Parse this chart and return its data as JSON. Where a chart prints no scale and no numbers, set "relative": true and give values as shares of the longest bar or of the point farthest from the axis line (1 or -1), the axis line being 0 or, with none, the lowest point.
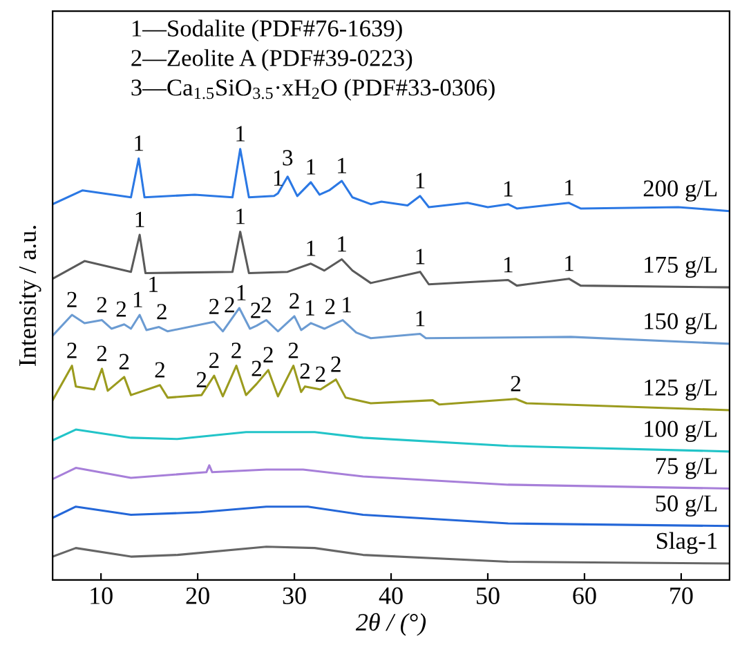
{
  "chart_data": {
    "type": "line",
    "relative": true,
    "xlabel": "2θ / (°)",
    "ylabel": "Intensity / a.u.",
    "xlim": [
      5,
      75
    ],
    "xticks": [
      10,
      20,
      30,
      40,
      50,
      60,
      70
    ],
    "tick_labels": "x",
    "grid": false,
    "legend": false,
    "marker": "none",
    "line_style": "solid",
    "series": [
      {
        "name": "200 g/L",
        "color": "#2b78e4",
        "x": [
          5.0,
          8.1,
          13.1,
          13.9,
          14.5,
          19.7,
          23.6,
          24.4,
          25.3,
          27.9,
          28.3,
          29.3,
          30.3,
          31.7,
          32.6,
          33.6,
          34.9,
          36.0,
          37.9,
          39.0,
          41.7,
          43.0,
          43.9,
          47.9,
          50.0,
          52.1,
          53.0,
          58.4,
          59.6,
          69.7,
          75.0
        ],
        "values": [
          0.872,
          0.904,
          0.888,
          0.978,
          0.888,
          0.894,
          0.888,
          1.0,
          0.888,
          0.891,
          0.897,
          0.936,
          0.891,
          0.923,
          0.894,
          0.904,
          0.926,
          0.888,
          0.872,
          0.878,
          0.869,
          0.891,
          0.865,
          0.875,
          0.865,
          0.872,
          0.862,
          0.875,
          0.862,
          0.865,
          0.856
        ]
      },
      {
        "name": "175 g/L",
        "color": "#5a5a5a",
        "x": [
          5.0,
          8.3,
          13.1,
          14.0,
          14.6,
          23.6,
          24.4,
          25.3,
          29.3,
          31.7,
          33.1,
          34.9,
          36.0,
          37.9,
          43.0,
          43.9,
          52.1,
          53.0,
          58.4,
          59.6,
          75.0
        ],
        "values": [
          0.699,
          0.74,
          0.715,
          0.801,
          0.712,
          0.715,
          0.808,
          0.712,
          0.715,
          0.734,
          0.718,
          0.744,
          0.718,
          0.689,
          0.715,
          0.686,
          0.696,
          0.683,
          0.699,
          0.683,
          0.679
        ]
      },
      {
        "name": "150 g/L",
        "color": "#6b9bd2",
        "x": [
          5.0,
          7.0,
          8.3,
          10.1,
          11.1,
          12.4,
          13.1,
          14.0,
          14.7,
          16.0,
          16.9,
          21.7,
          22.6,
          24.3,
          25.4,
          26.1,
          27.1,
          28.3,
          30.0,
          30.7,
          31.7,
          33.1,
          34.6,
          35.0,
          36.4,
          37.9,
          43.0,
          43.6,
          58.6,
          75.0
        ],
        "values": [
          0.567,
          0.615,
          0.596,
          0.603,
          0.583,
          0.593,
          0.583,
          0.615,
          0.58,
          0.587,
          0.577,
          0.599,
          0.577,
          0.631,
          0.583,
          0.59,
          0.603,
          0.577,
          0.612,
          0.58,
          0.596,
          0.583,
          0.599,
          0.603,
          0.574,
          0.561,
          0.571,
          0.561,
          0.564,
          0.548
        ]
      },
      {
        "name": "125 g/L",
        "color": "#9b9b1e",
        "x": [
          5.0,
          7.0,
          7.4,
          9.3,
          10.1,
          10.7,
          12.4,
          13.1,
          16.1,
          16.9,
          20.4,
          21.7,
          22.6,
          24.0,
          25.0,
          26.1,
          27.3,
          28.3,
          29.9,
          30.7,
          31.1,
          32.7,
          34.3,
          35.3,
          37.9,
          44.3,
          45.0,
          52.9,
          54.0,
          75.0
        ],
        "values": [
          0.417,
          0.497,
          0.449,
          0.442,
          0.49,
          0.439,
          0.471,
          0.429,
          0.452,
          0.423,
          0.429,
          0.474,
          0.426,
          0.497,
          0.429,
          0.455,
          0.487,
          0.426,
          0.497,
          0.436,
          0.449,
          0.442,
          0.465,
          0.423,
          0.41,
          0.417,
          0.407,
          0.42,
          0.41,
          0.394
        ]
      },
      {
        "name": "100 g/L",
        "color": "#22c4c8",
        "x": [
          5.0,
          7.4,
          13.1,
          17.9,
          25.0,
          32.1,
          37.1,
          52.1,
          75.0
        ],
        "values": [
          0.324,
          0.349,
          0.33,
          0.327,
          0.343,
          0.343,
          0.33,
          0.311,
          0.298
        ]
      },
      {
        "name": "75 g/L",
        "color": "#a77fd9",
        "x": [
          5.0,
          7.4,
          13.1,
          20.9,
          21.2,
          21.5,
          27.1,
          30.9,
          37.1,
          52.1,
          75.0
        ],
        "values": [
          0.234,
          0.26,
          0.237,
          0.25,
          0.266,
          0.25,
          0.256,
          0.256,
          0.24,
          0.221,
          0.212
        ]
      },
      {
        "name": "50 g/L",
        "color": "#2467d8",
        "x": [
          5.0,
          7.4,
          13.1,
          20.3,
          27.1,
          31.4,
          37.1,
          52.1,
          75.0
        ],
        "values": [
          0.144,
          0.17,
          0.151,
          0.157,
          0.17,
          0.17,
          0.151,
          0.131,
          0.125
        ]
      },
      {
        "name": "Slag-1",
        "color": "#666666",
        "x": [
          5.0,
          7.4,
          13.1,
          17.9,
          27.1,
          32.1,
          37.1,
          52.1,
          75.0
        ],
        "values": [
          0.054,
          0.074,
          0.054,
          0.058,
          0.077,
          0.074,
          0.058,
          0.042,
          0.038
        ]
      }
    ],
    "annotations": [
      "1—Sodalite (PDF#76-1639)",
      "2—Zeolite A (PDF#39-0223)",
      "3—Ca$_{1.5}$SiO$_{3.5}$·xH$_{2}$O (PDF#33-0306)",
      {
        "text": "1",
        "x": 13.9,
        "y": 0.978
      },
      {
        "text": "1",
        "x": 24.4,
        "y": 1.0
      },
      {
        "text": "1",
        "x": 28.3,
        "y": 0.897
      },
      {
        "text": "3",
        "x": 29.3,
        "y": 0.936
      },
      {
        "text": "1",
        "x": 31.7,
        "y": 0.923
      },
      {
        "text": "1",
        "x": 34.9,
        "y": 0.926
      },
      {
        "text": "1",
        "x": 43.0,
        "y": 0.891
      },
      {
        "text": "1",
        "x": 52.1,
        "y": 0.872
      },
      {
        "text": "1",
        "x": 58.4,
        "y": 0.875
      },
      {
        "text": "1",
        "x": 14.0,
        "y": 0.801
      },
      {
        "text": "1",
        "x": 24.4,
        "y": 0.808
      },
      {
        "text": "1",
        "x": 31.7,
        "y": 0.734
      },
      {
        "text": "1",
        "x": 34.9,
        "y": 0.744
      },
      {
        "text": "1",
        "x": 43.0,
        "y": 0.715
      },
      {
        "text": "1",
        "x": 52.1,
        "y": 0.696
      },
      {
        "text": "1",
        "x": 58.4,
        "y": 0.699
      },
      {
        "text": "2",
        "x": 7.0,
        "y": 0.615
      },
      {
        "text": "2",
        "x": 10.1,
        "y": 0.603
      },
      {
        "text": "2",
        "x": 12.1,
        "y": 0.593
      },
      {
        "text": "1",
        "x": 13.8,
        "y": 0.615
      },
      {
        "text": "2",
        "x": 16.3,
        "y": 0.587
      },
      {
        "text": "1",
        "x": 15.4,
        "y": 0.584
      },
      {
        "text": "2",
        "x": 21.7,
        "y": 0.599
      },
      {
        "text": "2",
        "x": 23.3,
        "y": 0.603
      },
      {
        "text": "1",
        "x": 24.5,
        "y": 0.631
      },
      {
        "text": "2",
        "x": 26.0,
        "y": 0.59
      },
      {
        "text": "2",
        "x": 27.1,
        "y": 0.603
      },
      {
        "text": "2",
        "x": 30.0,
        "y": 0.612
      },
      {
        "text": "1",
        "x": 31.6,
        "y": 0.596
      },
      {
        "text": "2",
        "x": 33.7,
        "y": 0.599
      },
      {
        "text": "1",
        "x": 35.4,
        "y": 0.603
      },
      {
        "text": "1",
        "x": 43.0,
        "y": 0.571
      },
      {
        "text": "2",
        "x": 7.0,
        "y": 0.497
      },
      {
        "text": "2",
        "x": 10.1,
        "y": 0.49
      },
      {
        "text": "2",
        "x": 12.4,
        "y": 0.471
      },
      {
        "text": "2",
        "x": 16.1,
        "y": 0.452
      },
      {
        "text": "2",
        "x": 20.4,
        "y": 0.429
      },
      {
        "text": "2",
        "x": 21.7,
        "y": 0.474
      },
      {
        "text": "2",
        "x": 24.0,
        "y": 0.497
      },
      {
        "text": "2",
        "x": 26.1,
        "y": 0.455
      },
      {
        "text": "2",
        "x": 27.3,
        "y": 0.487
      },
      {
        "text": "2",
        "x": 29.9,
        "y": 0.497
      },
      {
        "text": "2",
        "x": 31.1,
        "y": 0.449
      },
      {
        "text": "2",
        "x": 32.7,
        "y": 0.442
      },
      {
        "text": "2",
        "x": 34.3,
        "y": 0.465
      },
      {
        "text": "2",
        "x": 52.9,
        "y": 0.42
      }
    ]
  }
}
